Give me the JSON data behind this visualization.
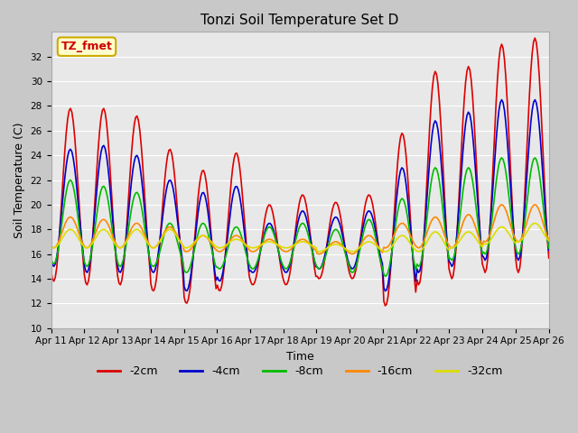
{
  "title": "Tonzi Soil Temperature Set D",
  "xlabel": "Time",
  "ylabel": "Soil Temperature (C)",
  "ylim": [
    10,
    34
  ],
  "yticks": [
    10,
    12,
    14,
    16,
    18,
    20,
    22,
    24,
    26,
    28,
    30,
    32
  ],
  "x_labels": [
    "Apr 11",
    "Apr 12",
    "Apr 13",
    "Apr 14",
    "Apr 15",
    "Apr 16",
    "Apr 17",
    "Apr 18",
    "Apr 19",
    "Apr 20",
    "Apr 21",
    "Apr 22",
    "Apr 23",
    "Apr 24",
    "Apr 25",
    "Apr 26"
  ],
  "annotation_text": "TZ_fmet",
  "annotation_bg": "#ffffcc",
  "annotation_border": "#ccaa00",
  "annotation_text_color": "#cc0000",
  "series": {
    "-2cm": {
      "color": "#dd0000",
      "lw": 1.2
    },
    "-4cm": {
      "color": "#0000cc",
      "lw": 1.2
    },
    "-8cm": {
      "color": "#00bb00",
      "lw": 1.2
    },
    "-16cm": {
      "color": "#ff8800",
      "lw": 1.2
    },
    "-32cm": {
      "color": "#dddd00",
      "lw": 1.2
    }
  },
  "fig_bg": "#c8c8c8",
  "plot_bg": "#e8e8e8",
  "n_days": 15,
  "pts_per_day": 24,
  "grid_color": "#ffffff",
  "spine_color": "#aaaaaa"
}
